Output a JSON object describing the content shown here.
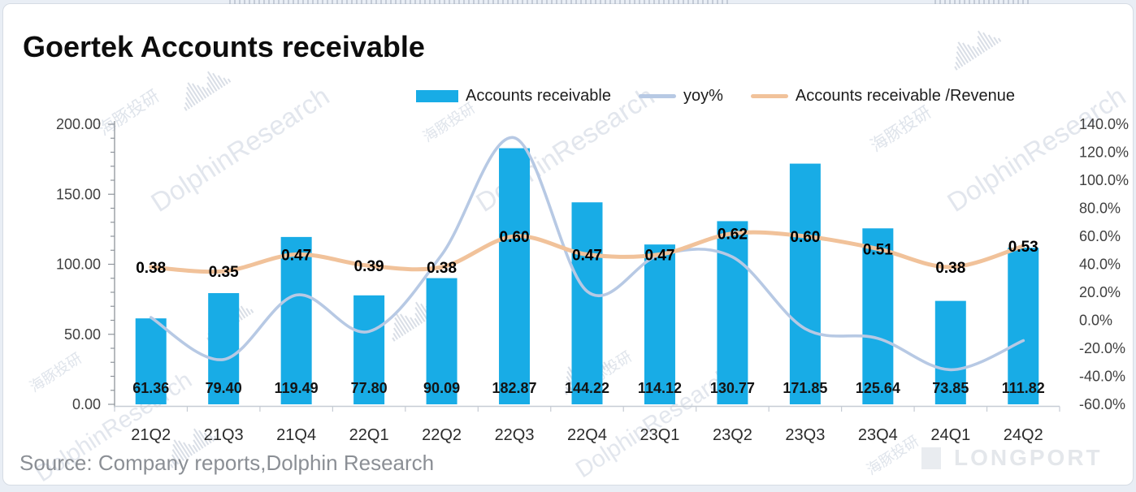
{
  "title": "Goertek Accounts receivable",
  "source_note": "Source: Company reports,Dolphin Research",
  "legend": [
    {
      "label": "Accounts receivable",
      "type": "bar",
      "color": "#18ace6"
    },
    {
      "label": "yoy%",
      "type": "line",
      "color": "#b7c9e4"
    },
    {
      "label": "Accounts receivable /Revenue",
      "type": "line",
      "color": "#f1c29a"
    }
  ],
  "watermark": {
    "brand": "DolphinResearch",
    "brand_cn": "海豚投研",
    "footer_logo": "LONGPORT"
  },
  "chart_data": {
    "type": "bar",
    "title": "Goertek Accounts receivable",
    "categories": [
      "21Q2",
      "21Q3",
      "21Q4",
      "22Q1",
      "22Q2",
      "22Q3",
      "22Q4",
      "23Q1",
      "23Q2",
      "23Q3",
      "23Q4",
      "24Q1",
      "24Q2"
    ],
    "series": [
      {
        "name": "Accounts receivable",
        "type": "bar",
        "axis": "left",
        "color": "#18ace6",
        "values": [
          61.36,
          79.4,
          119.49,
          77.8,
          90.09,
          182.87,
          144.22,
          114.12,
          130.77,
          171.85,
          125.64,
          73.85,
          111.82
        ],
        "data_labels": [
          "61.36",
          "79.40",
          "119.49",
          "77.80",
          "90.09",
          "182.87",
          "144.22",
          "114.12",
          "130.77",
          "171.85",
          "125.64",
          "73.85",
          "111.82"
        ]
      },
      {
        "name": "yoy%",
        "type": "line",
        "axis": "right",
        "color": "#b7c9e4",
        "values_pct": [
          2,
          -28,
          18,
          -8,
          46.8,
          130.3,
          20.7,
          46.7,
          45.2,
          -6,
          -12.9,
          -35.3,
          -14.5
        ]
      },
      {
        "name": "Accounts receivable /Revenue",
        "type": "line",
        "axis": "right",
        "color": "#f1c29a",
        "values_pct": [
          38,
          35,
          47,
          39,
          38,
          60,
          47,
          47,
          62,
          60,
          51,
          38,
          53
        ],
        "data_labels": [
          "0.38",
          "0.35",
          "0.47",
          "0.39",
          "0.38",
          "0.60",
          "0.47",
          "0.47",
          "0.62",
          "0.60",
          "0.51",
          "0.38",
          "0.53"
        ]
      }
    ],
    "left_axis": {
      "min": 0,
      "max": 200,
      "tick_values": [
        200,
        150,
        100,
        50,
        0
      ],
      "tick_labels": [
        "200.00",
        "150.00",
        "100.00",
        "50.00",
        "0.00"
      ],
      "minor_tick_step": 10
    },
    "right_axis": {
      "min": -60,
      "max": 140,
      "tick_values": [
        140,
        120,
        100,
        80,
        60,
        40,
        20,
        0,
        -20,
        -40,
        -60
      ],
      "tick_labels": [
        "140.0%",
        "120.0%",
        "100.0%",
        "80.0%",
        "60.0%",
        "40.0%",
        "20.0%",
        "0.0%",
        "-20.0%",
        "-40.0%",
        "-60.0%"
      ]
    },
    "grid": "off",
    "legend_position": "top"
  }
}
